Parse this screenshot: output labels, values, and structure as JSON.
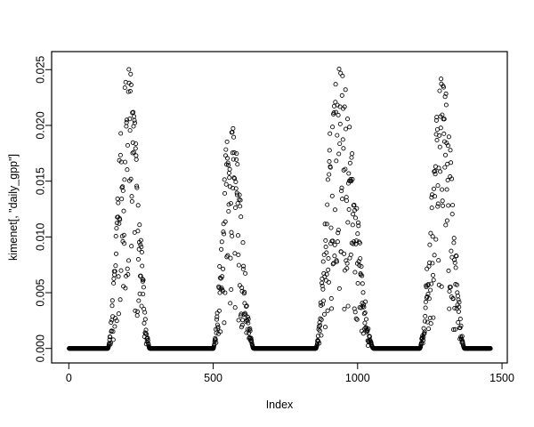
{
  "chart_data": {
    "type": "scatter",
    "title": "",
    "xlabel": "Index",
    "ylabel": "kimenet[, \"daily_gpp\"]",
    "x_ticks": [
      0,
      500,
      1000,
      1500
    ],
    "y_tick_values": [
      0.0,
      0.005,
      0.01,
      0.015,
      0.02,
      0.025
    ],
    "y_tick_labels": [
      "0.000",
      "0.005",
      "0.010",
      "0.015",
      "0.020",
      "0.025"
    ],
    "xlim": [
      0,
      1500
    ],
    "ylim": [
      0.0,
      0.025
    ],
    "grid": false,
    "legend": "none",
    "n_points": 1460,
    "marker": "open-circle",
    "point_color": "#000000",
    "background_color": "#ffffff",
    "series": [
      {
        "name": "daily_gpp",
        "description": "Daily GPP time series vs row index: long runs of zeros (dormant seasons) separated by four noisy growing-season peaks",
        "segments": [
          {
            "type": "flat",
            "from": 1,
            "to": 135,
            "value": 0.0
          },
          {
            "type": "peak",
            "from": 135,
            "to": 280,
            "max": 0.0256,
            "peak_at": 0.48
          },
          {
            "type": "flat",
            "from": 281,
            "to": 500,
            "value": 0.0
          },
          {
            "type": "peak",
            "from": 500,
            "to": 640,
            "max": 0.0206,
            "peak_at": 0.42
          },
          {
            "type": "flat",
            "from": 641,
            "to": 855,
            "value": 0.0
          },
          {
            "type": "peak",
            "from": 855,
            "to": 1055,
            "max": 0.0257,
            "peak_at": 0.38
          },
          {
            "type": "flat",
            "from": 1056,
            "to": 1215,
            "value": 0.0
          },
          {
            "type": "peak",
            "from": 1215,
            "to": 1370,
            "max": 0.0246,
            "peak_at": 0.5
          },
          {
            "type": "flat",
            "from": 1371,
            "to": 1460,
            "value": 0.0
          }
        ]
      }
    ]
  }
}
